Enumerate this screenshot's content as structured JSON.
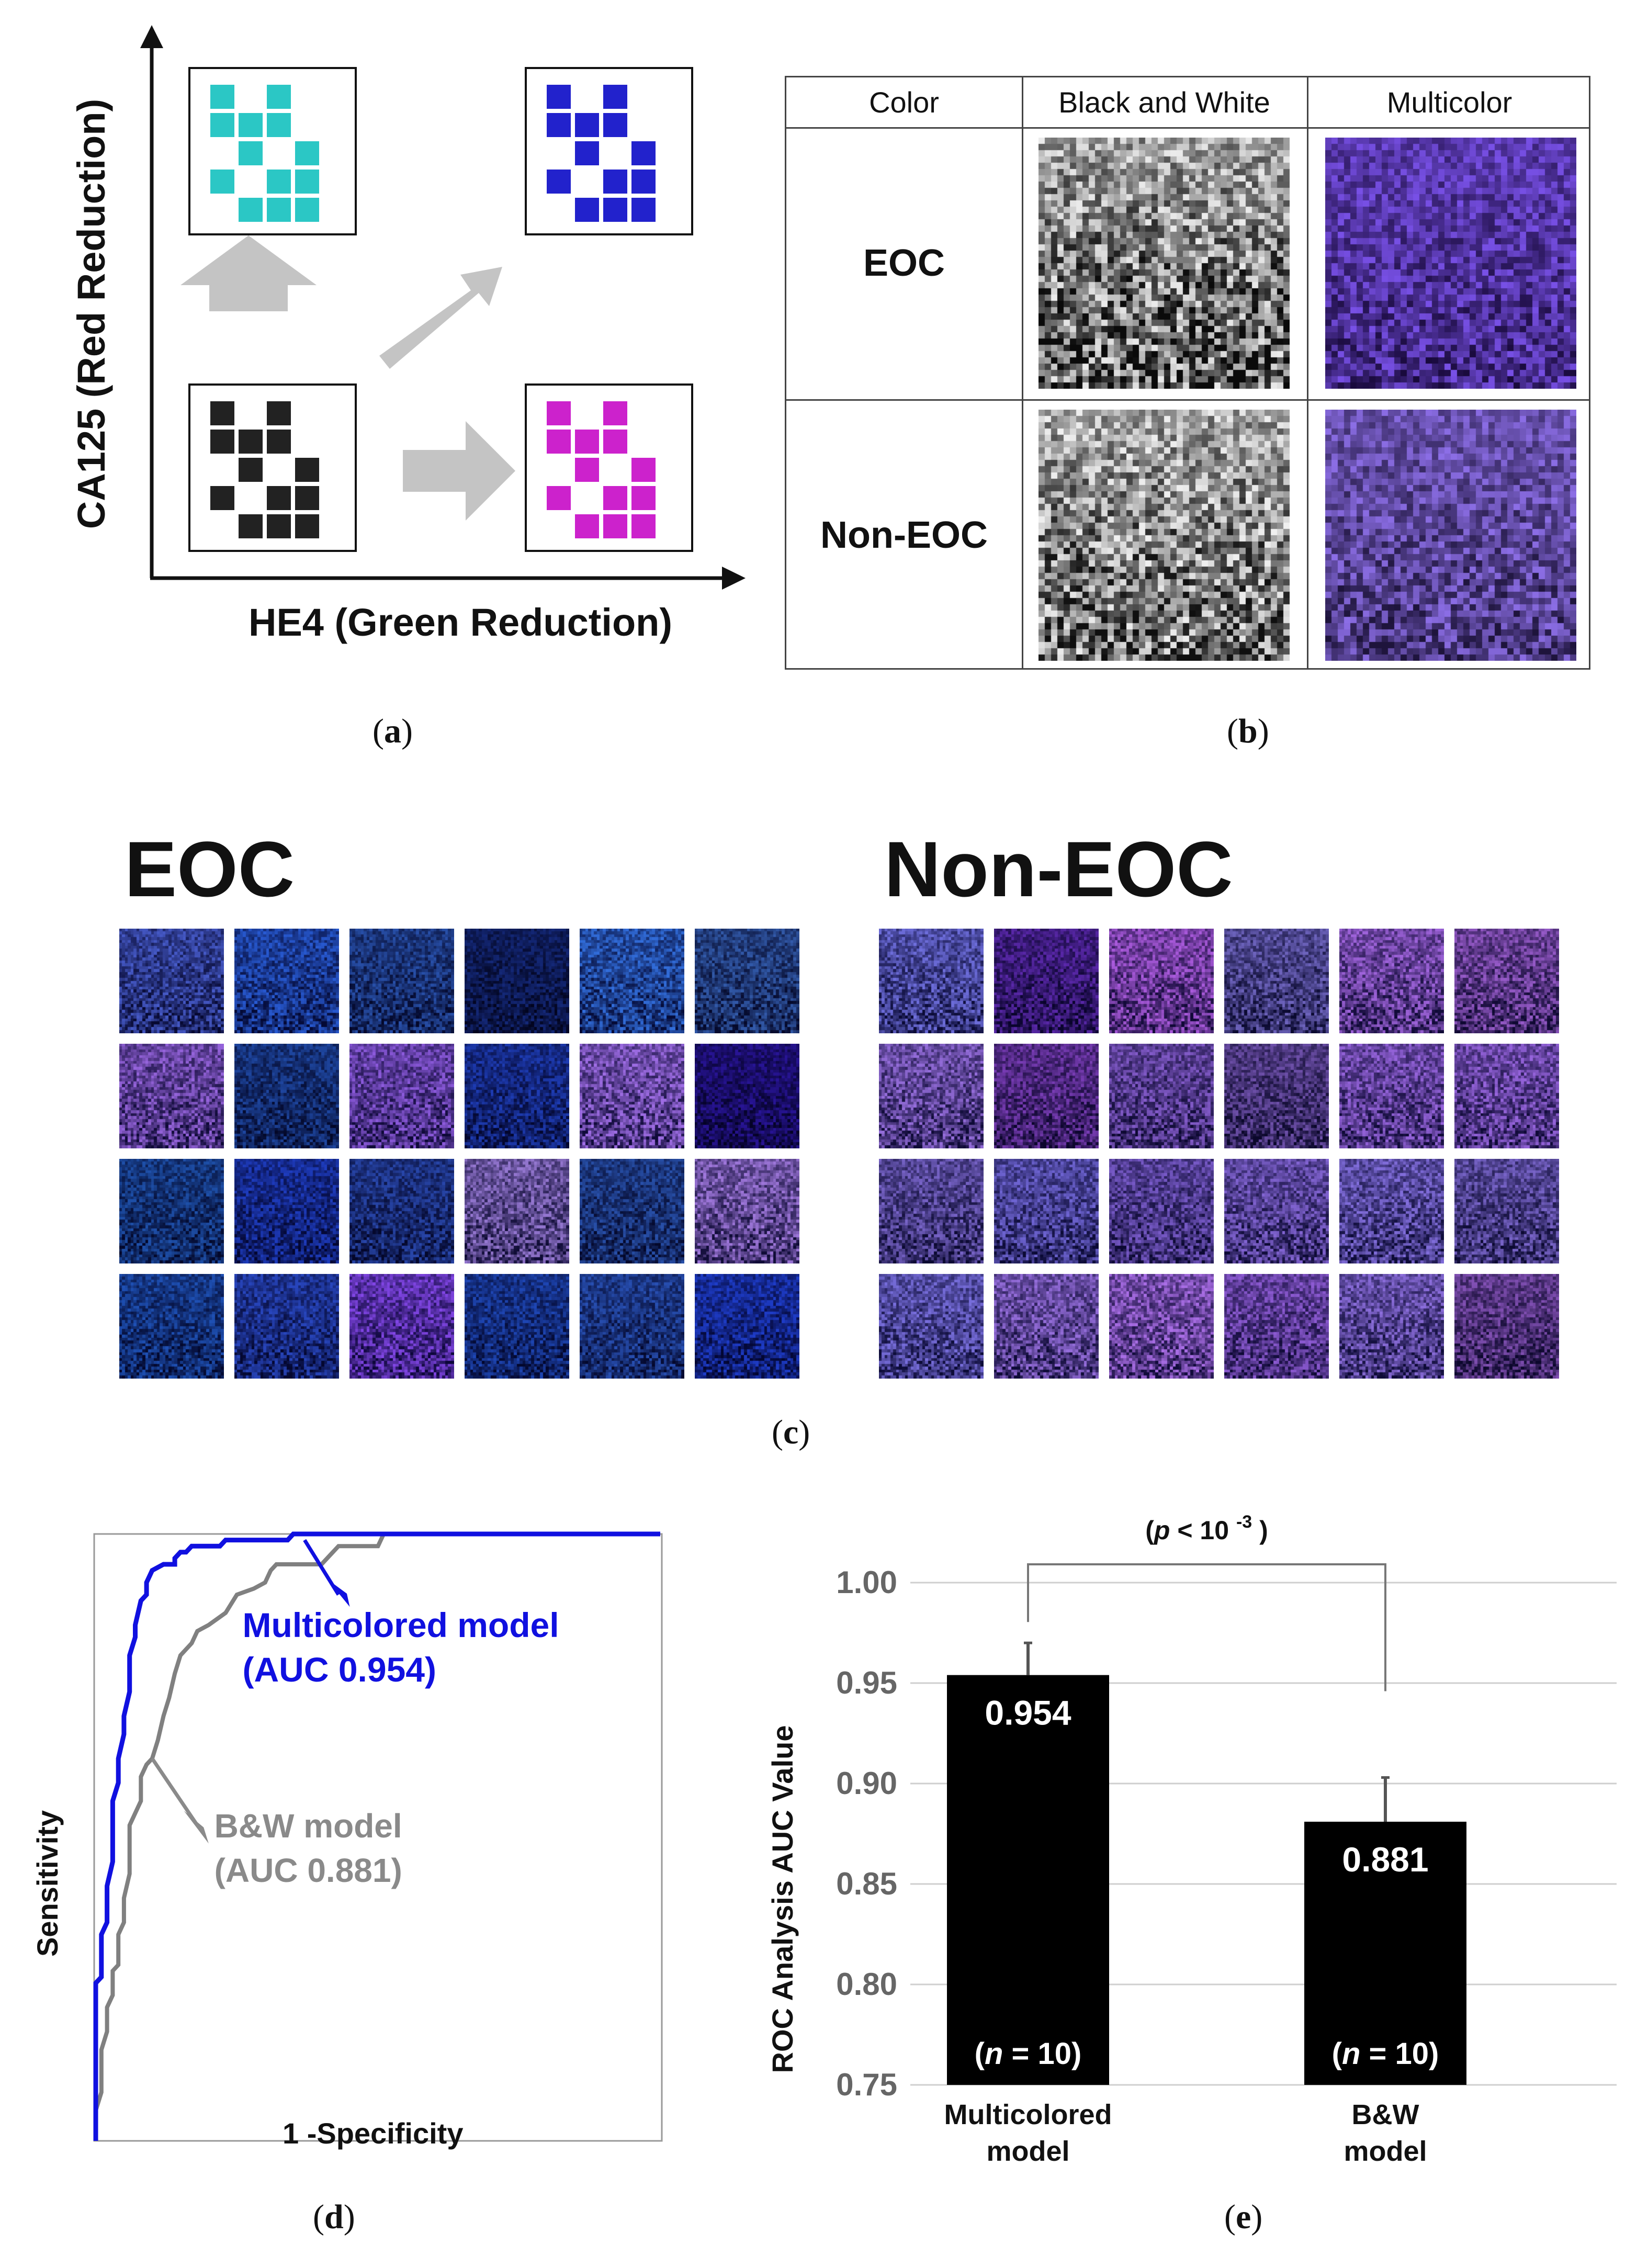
{
  "panel_labels": {
    "a": "a",
    "b": "b",
    "c": "c",
    "d": "d",
    "e": "e"
  },
  "panel_a": {
    "y_axis_label": "CA125 (Red Reduction)",
    "x_axis_label": "HE4 (Green Reduction)",
    "colors": {
      "top_left": "#2bc7c5",
      "top_right": "#2222cc",
      "bottom_left": "#222222",
      "bottom_right": "#cc22cc",
      "arrow": "#c4c4c4"
    }
  },
  "panel_b": {
    "headers": [
      "Color",
      "Black and White",
      "Multicolor"
    ],
    "rows": [
      "EOC",
      "Non-EOC"
    ]
  },
  "panel_c": {
    "groups": [
      {
        "title": "EOC",
        "rows": 4,
        "cols": 6
      },
      {
        "title": "Non-EOC",
        "rows": 4,
        "cols": 6
      }
    ]
  },
  "chart_data": [
    {
      "type": "line",
      "title": "",
      "xlabel": "1 -Specificity",
      "ylabel": "Sensitivity",
      "series": [
        {
          "name": "Multicolored model",
          "color": "#1010e0",
          "points": [
            [
              0.0,
              0.0
            ],
            [
              0.0,
              0.25
            ],
            [
              0.0,
              0.26
            ],
            [
              0.01,
              0.27
            ],
            [
              0.01,
              0.34
            ],
            [
              0.02,
              0.36
            ],
            [
              0.02,
              0.42
            ],
            [
              0.03,
              0.46
            ],
            [
              0.03,
              0.56
            ],
            [
              0.04,
              0.59
            ],
            [
              0.04,
              0.63
            ],
            [
              0.05,
              0.67
            ],
            [
              0.05,
              0.7
            ],
            [
              0.06,
              0.74
            ],
            [
              0.06,
              0.8
            ],
            [
              0.07,
              0.83
            ],
            [
              0.07,
              0.85
            ],
            [
              0.08,
              0.89
            ],
            [
              0.09,
              0.9
            ],
            [
              0.09,
              0.92
            ],
            [
              0.1,
              0.94
            ],
            [
              0.12,
              0.95
            ],
            [
              0.14,
              0.95
            ],
            [
              0.14,
              0.96
            ],
            [
              0.15,
              0.97
            ],
            [
              0.16,
              0.97
            ],
            [
              0.17,
              0.98
            ],
            [
              0.22,
              0.98
            ],
            [
              0.23,
              0.99
            ],
            [
              0.34,
              0.99
            ],
            [
              0.35,
              1.0
            ],
            [
              1.0,
              1.0
            ]
          ]
        },
        {
          "name": "B&W model",
          "color": "#808080",
          "points": [
            [
              0.0,
              0.0
            ],
            [
              0.0,
              0.05
            ],
            [
              0.01,
              0.08
            ],
            [
              0.01,
              0.15
            ],
            [
              0.02,
              0.18
            ],
            [
              0.02,
              0.22
            ],
            [
              0.03,
              0.24
            ],
            [
              0.03,
              0.28
            ],
            [
              0.04,
              0.29
            ],
            [
              0.04,
              0.34
            ],
            [
              0.05,
              0.36
            ],
            [
              0.05,
              0.4
            ],
            [
              0.06,
              0.44
            ],
            [
              0.06,
              0.52
            ],
            [
              0.07,
              0.54
            ],
            [
              0.08,
              0.56
            ],
            [
              0.08,
              0.6
            ],
            [
              0.09,
              0.62
            ],
            [
              0.1,
              0.63
            ],
            [
              0.11,
              0.66
            ],
            [
              0.12,
              0.7
            ],
            [
              0.13,
              0.73
            ],
            [
              0.14,
              0.77
            ],
            [
              0.15,
              0.8
            ],
            [
              0.17,
              0.82
            ],
            [
              0.18,
              0.84
            ],
            [
              0.2,
              0.85
            ],
            [
              0.23,
              0.87
            ],
            [
              0.25,
              0.9
            ],
            [
              0.28,
              0.91
            ],
            [
              0.3,
              0.92
            ],
            [
              0.31,
              0.94
            ],
            [
              0.32,
              0.95
            ],
            [
              0.4,
              0.95
            ],
            [
              0.41,
              0.96
            ],
            [
              0.43,
              0.98
            ],
            [
              0.5,
              0.98
            ],
            [
              0.51,
              1.0
            ],
            [
              0.62,
              1.0
            ],
            [
              1.0,
              1.0
            ]
          ]
        }
      ],
      "annotations": [
        {
          "text": "Multicolored model",
          "line2": "(AUC 0.954)",
          "color": "#1010e0"
        },
        {
          "text": "B&W model",
          "line2": "(AUC 0.881)",
          "color": "#8a8a8a"
        }
      ],
      "xlim": [
        0,
        1
      ],
      "ylim": [
        0,
        1
      ],
      "grid": false
    },
    {
      "type": "bar",
      "title": "",
      "xlabel": "",
      "ylabel": "ROC Analysis AUC Value",
      "categories": [
        "Multicolored model",
        "B&W model"
      ],
      "category_lines": [
        [
          "Multicolored",
          "model"
        ],
        [
          "B&W",
          "model"
        ]
      ],
      "values": [
        0.954,
        0.881
      ],
      "value_labels": [
        "0.954",
        "0.881"
      ],
      "errors": [
        0.016,
        0.022
      ],
      "n_labels": [
        "10",
        "10"
      ],
      "n_prefix": "n",
      "n_sep": " = ",
      "ylim": [
        0.75,
        1.0
      ],
      "yticks": [
        "0.75",
        "0.80",
        "0.85",
        "0.90",
        "0.95",
        "1.00"
      ],
      "grid": true,
      "bar_color": "#000000",
      "significance": {
        "prefix": "(",
        "p": "p",
        "mid": " < 10 ",
        "exp": "-3",
        "suffix": " )"
      }
    }
  ]
}
